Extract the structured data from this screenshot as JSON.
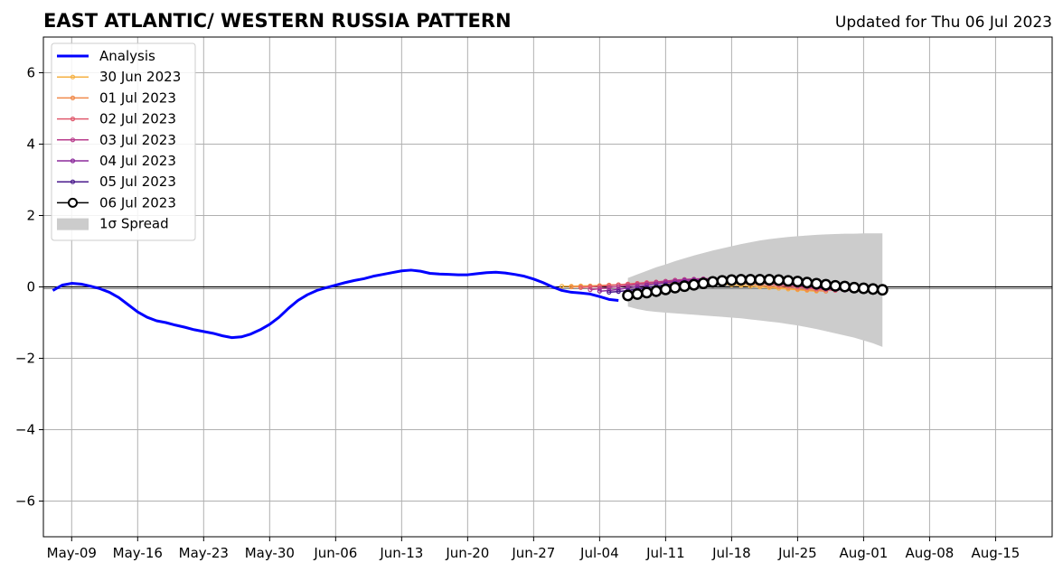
{
  "chart_data": {
    "type": "line",
    "title": "EAST ATLANTIC/ WESTERN RUSSIA PATTERN",
    "updated": "Updated for Thu 06 Jul 2023",
    "xlabel": "",
    "ylabel": "",
    "x_axis": {
      "start": "2023-05-06",
      "end": "2023-08-21",
      "ticks": [
        "May-09",
        "May-16",
        "May-23",
        "May-30",
        "Jun-06",
        "Jun-13",
        "Jun-20",
        "Jun-27",
        "Jul-04",
        "Jul-11",
        "Jul-18",
        "Jul-25",
        "Aug-01",
        "Aug-08",
        "Aug-15"
      ]
    },
    "ylim": [
      -7,
      7
    ],
    "yticks": [
      -6,
      -4,
      -2,
      0,
      2,
      4,
      6
    ],
    "grid": true,
    "legend_position": "top-left",
    "analysis": {
      "name": "Analysis",
      "color": "#0000ff",
      "points": [
        [
          "2023-05-07",
          -0.1
        ],
        [
          "2023-05-08",
          0.05
        ],
        [
          "2023-05-09",
          0.1
        ],
        [
          "2023-05-10",
          0.08
        ],
        [
          "2023-05-11",
          0.02
        ],
        [
          "2023-05-12",
          -0.05
        ],
        [
          "2023-05-13",
          -0.15
        ],
        [
          "2023-05-14",
          -0.3
        ],
        [
          "2023-05-15",
          -0.5
        ],
        [
          "2023-05-16",
          -0.7
        ],
        [
          "2023-05-17",
          -0.85
        ],
        [
          "2023-05-18",
          -0.95
        ],
        [
          "2023-05-19",
          -1.0
        ],
        [
          "2023-05-20",
          -1.07
        ],
        [
          "2023-05-21",
          -1.13
        ],
        [
          "2023-05-22",
          -1.2
        ],
        [
          "2023-05-23",
          -1.25
        ],
        [
          "2023-05-24",
          -1.3
        ],
        [
          "2023-05-25",
          -1.37
        ],
        [
          "2023-05-26",
          -1.42
        ],
        [
          "2023-05-27",
          -1.4
        ],
        [
          "2023-05-28",
          -1.32
        ],
        [
          "2023-05-29",
          -1.2
        ],
        [
          "2023-05-30",
          -1.05
        ],
        [
          "2023-05-31",
          -0.85
        ],
        [
          "2023-06-01",
          -0.6
        ],
        [
          "2023-06-02",
          -0.38
        ],
        [
          "2023-06-03",
          -0.22
        ],
        [
          "2023-06-04",
          -0.1
        ],
        [
          "2023-06-05",
          -0.02
        ],
        [
          "2023-06-06",
          0.05
        ],
        [
          "2023-06-07",
          0.12
        ],
        [
          "2023-06-08",
          0.18
        ],
        [
          "2023-06-09",
          0.23
        ],
        [
          "2023-06-10",
          0.3
        ],
        [
          "2023-06-11",
          0.35
        ],
        [
          "2023-06-12",
          0.4
        ],
        [
          "2023-06-13",
          0.45
        ],
        [
          "2023-06-14",
          0.47
        ],
        [
          "2023-06-15",
          0.44
        ],
        [
          "2023-06-16",
          0.38
        ],
        [
          "2023-06-17",
          0.36
        ],
        [
          "2023-06-18",
          0.35
        ],
        [
          "2023-06-19",
          0.34
        ],
        [
          "2023-06-20",
          0.34
        ],
        [
          "2023-06-21",
          0.37
        ],
        [
          "2023-06-22",
          0.4
        ],
        [
          "2023-06-23",
          0.41
        ],
        [
          "2023-06-24",
          0.39
        ],
        [
          "2023-06-25",
          0.35
        ],
        [
          "2023-06-26",
          0.3
        ],
        [
          "2023-06-27",
          0.22
        ],
        [
          "2023-06-28",
          0.12
        ],
        [
          "2023-06-29",
          0.0
        ],
        [
          "2023-06-30",
          -0.1
        ],
        [
          "2023-07-01",
          -0.15
        ],
        [
          "2023-07-02",
          -0.17
        ],
        [
          "2023-07-03",
          -0.2
        ],
        [
          "2023-07-04",
          -0.27
        ],
        [
          "2023-07-05",
          -0.35
        ],
        [
          "2023-07-06",
          -0.38
        ]
      ]
    },
    "forecasts": [
      {
        "name": "30 Jun 2023",
        "color": "#f5b041",
        "start": "2023-06-30",
        "values": [
          0.02,
          0.02,
          0.03,
          0.03,
          0.04,
          0.05,
          0.06,
          0.07,
          0.08,
          0.09,
          0.1,
          0.11,
          0.12,
          0.12,
          0.12,
          0.11,
          0.1,
          0.08,
          0.06,
          0.04,
          0.02,
          0.0,
          -0.02,
          -0.04,
          -0.06,
          -0.08,
          -0.1,
          -0.12
        ]
      },
      {
        "name": "01 Jul 2023",
        "color": "#f08a4b",
        "start": "2023-07-01",
        "values": [
          0.0,
          0.01,
          0.02,
          0.03,
          0.05,
          0.06,
          0.08,
          0.1,
          0.12,
          0.13,
          0.14,
          0.15,
          0.16,
          0.17,
          0.17,
          0.16,
          0.14,
          0.12,
          0.1,
          0.08,
          0.05,
          0.02,
          0.0,
          -0.03,
          -0.06,
          -0.08,
          -0.1,
          -0.12
        ]
      },
      {
        "name": "02 Jul 2023",
        "color": "#e05a6e",
        "start": "2023-07-02",
        "values": [
          -0.02,
          0.0,
          0.02,
          0.04,
          0.06,
          0.08,
          0.1,
          0.12,
          0.14,
          0.16,
          0.18,
          0.19,
          0.2,
          0.2,
          0.2,
          0.19,
          0.18,
          0.16,
          0.14,
          0.11,
          0.08,
          0.05,
          0.02,
          0.0,
          -0.03,
          -0.06,
          -0.08,
          -0.1
        ]
      },
      {
        "name": "03 Jul 2023",
        "color": "#b83c8c",
        "start": "2023-07-03",
        "values": [
          -0.08,
          -0.05,
          -0.02,
          0.01,
          0.04,
          0.07,
          0.1,
          0.13,
          0.16,
          0.19,
          0.21,
          0.22,
          0.23,
          0.23,
          0.23,
          0.22,
          0.2,
          0.18,
          0.16,
          0.13,
          0.1,
          0.07,
          0.04,
          0.01,
          -0.02,
          -0.05,
          -0.07,
          -0.09
        ]
      },
      {
        "name": "04 Jul 2023",
        "color": "#8b2a9c",
        "start": "2023-07-04",
        "values": [
          -0.12,
          -0.1,
          -0.07,
          -0.03,
          0.01,
          0.05,
          0.09,
          0.12,
          0.15,
          0.18,
          0.2,
          0.21,
          0.22,
          0.22,
          0.21,
          0.2,
          0.18,
          0.16,
          0.13,
          0.1,
          0.07,
          0.04,
          0.01,
          -0.02,
          -0.05,
          -0.07,
          -0.09,
          -0.1
        ]
      },
      {
        "name": "05 Jul 2023",
        "color": "#4a1a8c",
        "start": "2023-07-05",
        "values": [
          -0.15,
          -0.13,
          -0.1,
          -0.06,
          -0.02,
          0.02,
          0.06,
          0.1,
          0.13,
          0.16,
          0.18,
          0.2,
          0.21,
          0.21,
          0.2,
          0.19,
          0.17,
          0.15,
          0.12,
          0.09,
          0.06,
          0.03,
          0.0,
          -0.03,
          -0.05,
          -0.07,
          -0.09,
          -0.1
        ]
      },
      {
        "name": "06 Jul 2023",
        "color": "#000000",
        "start": "2023-07-07",
        "values": [
          -0.24,
          -0.2,
          -0.16,
          -0.12,
          -0.07,
          -0.02,
          0.02,
          0.06,
          0.1,
          0.14,
          0.17,
          0.19,
          0.2,
          0.2,
          0.2,
          0.2,
          0.19,
          0.17,
          0.15,
          0.12,
          0.09,
          0.06,
          0.03,
          0.01,
          -0.02,
          -0.04,
          -0.06,
          -0.08
        ]
      }
    ],
    "spread": {
      "name": "1σ Spread",
      "color": "#cccccc",
      "start": "2023-07-07",
      "upper": [
        0.25,
        0.35,
        0.45,
        0.55,
        0.63,
        0.72,
        0.8,
        0.88,
        0.95,
        1.02,
        1.08,
        1.14,
        1.2,
        1.25,
        1.3,
        1.34,
        1.37,
        1.4,
        1.42,
        1.44,
        1.46,
        1.47,
        1.48,
        1.49,
        1.49,
        1.5,
        1.5,
        1.5
      ],
      "lower": [
        -0.55,
        -0.62,
        -0.67,
        -0.7,
        -0.72,
        -0.74,
        -0.76,
        -0.78,
        -0.8,
        -0.82,
        -0.84,
        -0.86,
        -0.88,
        -0.91,
        -0.94,
        -0.97,
        -1.0,
        -1.04,
        -1.08,
        -1.13,
        -1.18,
        -1.24,
        -1.3,
        -1.36,
        -1.42,
        -1.5,
        -1.58,
        -1.68
      ]
    }
  }
}
